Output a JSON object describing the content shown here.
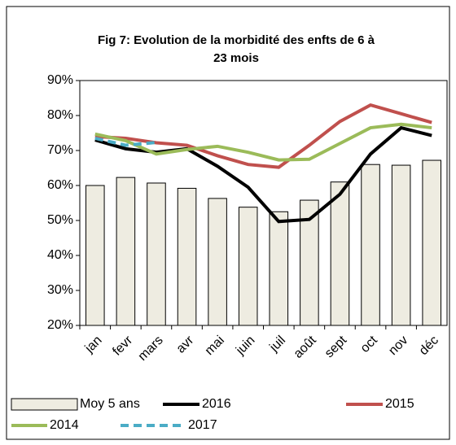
{
  "chart_data": {
    "type": "bar_line",
    "title": [
      "Fig 7: Evolution de la morbidité des enfts de 6 à",
      "23 mois"
    ],
    "categories": [
      "jan",
      "fevr",
      "mars",
      "avr",
      "mai",
      "juin",
      "juil",
      "août",
      "sept",
      "oct",
      "nov",
      "déc"
    ],
    "series": [
      {
        "name": "Moy 5 ans",
        "type": "bar",
        "color": "#eeece1",
        "values": [
          60,
          62.3,
          60.7,
          59.2,
          56.3,
          53.8,
          52.5,
          55.8,
          61,
          66,
          65.8,
          67.2
        ]
      },
      {
        "name": "2016",
        "type": "line",
        "color": "#000000",
        "values": [
          73,
          70.5,
          69.5,
          70.5,
          65.5,
          59.5,
          49.7,
          50.3,
          57.5,
          69,
          76.5,
          74.3
        ]
      },
      {
        "name": "2015",
        "type": "line",
        "color": "#c0504d",
        "values": [
          74,
          73.5,
          72.2,
          71.5,
          68.5,
          66,
          65.2,
          71.5,
          78.3,
          83,
          80.5,
          78
        ]
      },
      {
        "name": "2014",
        "type": "line",
        "color": "#9bbb59",
        "values": [
          74.7,
          72.8,
          69,
          70.3,
          71.2,
          69.5,
          67.3,
          67.5,
          72,
          76.5,
          77.5,
          76.5
        ]
      },
      {
        "name": "2017",
        "type": "line",
        "color": "#4bacc6",
        "dashed": true,
        "values": [
          73.5,
          71.5,
          72.3,
          null,
          null,
          null,
          null,
          null,
          null,
          null,
          null,
          null
        ]
      }
    ],
    "ylim": [
      20,
      90
    ],
    "yticks": [
      {
        "value": 20,
        "label": "20%"
      },
      {
        "value": 30,
        "label": "30%"
      },
      {
        "value": 40,
        "label": "40%"
      },
      {
        "value": 50,
        "label": "50%"
      },
      {
        "value": 60,
        "label": "60%"
      },
      {
        "value": 70,
        "label": "70%"
      },
      {
        "value": 80,
        "label": "80%"
      },
      {
        "value": 90,
        "label": "90%"
      }
    ],
    "grid": false
  }
}
